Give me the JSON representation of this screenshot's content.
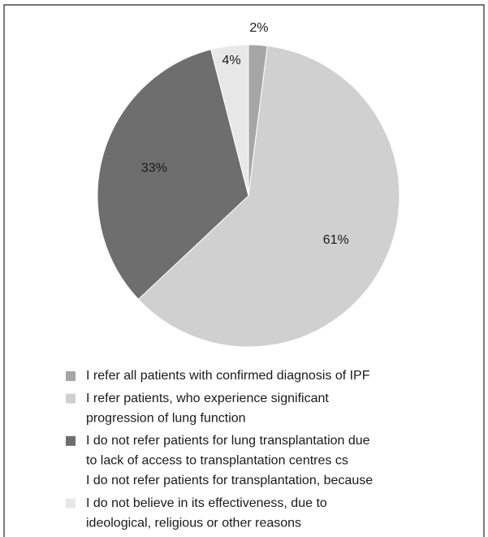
{
  "chart_data": {
    "type": "pie",
    "series": [
      {
        "name": [
          "I refer all patients with confirmed diagnosis of IPF"
        ],
        "color": "#a6a6a6",
        "values": [
          2
        ],
        "value_labels": [
          "2%"
        ]
      },
      {
        "name": [
          "I refer patients, who experience significant",
          "progression of lung function"
        ],
        "color": "#d0d0d0",
        "values": [
          61
        ],
        "value_labels": [
          "61%"
        ]
      },
      {
        "name": [
          "I do not refer patients for lung transplantation due",
          "to lack of access to transplantation centres cs",
          "I do not refer patients for transplantation, because"
        ],
        "color": "#6e6e6e",
        "values": [
          33
        ],
        "value_labels": [
          "33%"
        ]
      },
      {
        "name": [
          "I do not believe in its effectiveness, due to",
          "ideological, religious or other reasons"
        ],
        "color": "#e8e8e8",
        "values": [
          4
        ],
        "value_labels": [
          "4%"
        ]
      }
    ]
  }
}
